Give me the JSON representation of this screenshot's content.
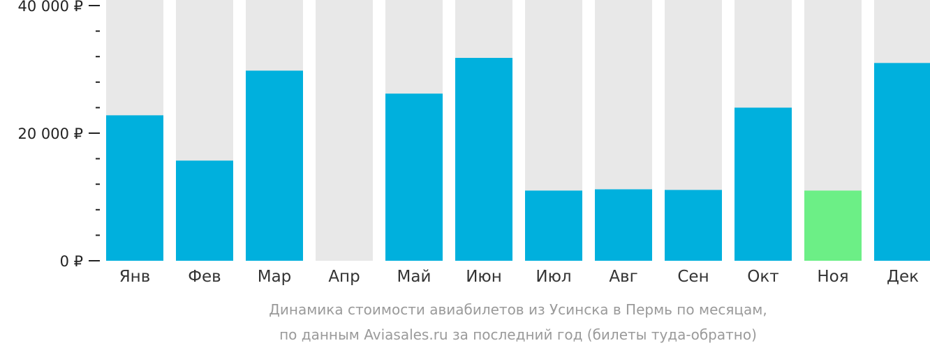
{
  "chart_data": {
    "type": "bar",
    "categories": [
      "Янв",
      "Фев",
      "Мар",
      "Апр",
      "Май",
      "Июн",
      "Июл",
      "Авг",
      "Сен",
      "Окт",
      "Ноя",
      "Дек"
    ],
    "values": [
      22800,
      15700,
      29800,
      null,
      26200,
      31800,
      11000,
      11200,
      11100,
      24000,
      11000,
      31000
    ],
    "highlight_index": 10,
    "ylim": [
      0,
      40000
    ],
    "yticks": [
      0,
      20000,
      40000
    ],
    "ytick_labels": [
      "0 ₽",
      "20 000 ₽",
      "40 000 ₽"
    ],
    "minor_tick_step": 4000,
    "caption_lines": [
      "Динамика стоимости авиабилетов из Усинска в Пермь по месяцам,",
      "по данным Aviasales.ru за последний год (билеты туда-обратно)"
    ],
    "colors": {
      "bar": "#00b0dd",
      "highlight": "#6cef86",
      "background_bar": "#e8e8e8",
      "axis": "#222222"
    }
  }
}
